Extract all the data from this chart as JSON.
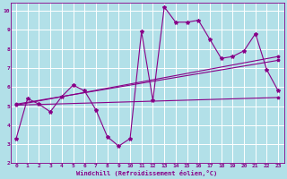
{
  "xlabel": "Windchill (Refroidissement éolien,°C)",
  "bg_color": "#b2e0e8",
  "line_color": "#880088",
  "grid_color": "#ffffff",
  "xlim": [
    -0.5,
    23.5
  ],
  "ylim": [
    2,
    10.4
  ],
  "xticks": [
    0,
    1,
    2,
    3,
    4,
    5,
    6,
    7,
    8,
    9,
    10,
    11,
    12,
    13,
    14,
    15,
    16,
    17,
    18,
    19,
    20,
    21,
    22,
    23
  ],
  "yticks": [
    2,
    3,
    4,
    5,
    6,
    7,
    8,
    9,
    10
  ],
  "series": [
    {
      "x": [
        0,
        1,
        2,
        3,
        4,
        5,
        6,
        7,
        8,
        9,
        10,
        11,
        12,
        13,
        14,
        15,
        16,
        17,
        18,
        19,
        20,
        21,
        22,
        23
      ],
      "y": [
        3.3,
        5.4,
        5.1,
        4.7,
        5.5,
        6.1,
        5.8,
        4.8,
        3.4,
        2.9,
        3.3,
        8.9,
        5.3,
        10.2,
        9.4,
        9.4,
        9.5,
        8.5,
        7.5,
        7.6,
        7.9,
        8.8,
        6.9,
        5.8
      ]
    },
    {
      "x": [
        0,
        23
      ],
      "y": [
        5.05,
        5.45
      ]
    },
    {
      "x": [
        0,
        23
      ],
      "y": [
        5.1,
        7.4
      ]
    },
    {
      "x": [
        0,
        23
      ],
      "y": [
        5.05,
        7.6
      ]
    }
  ]
}
